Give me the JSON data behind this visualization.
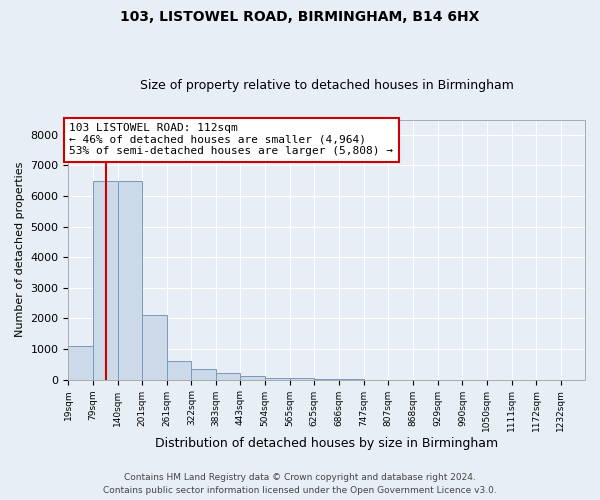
{
  "title1": "103, LISTOWEL ROAD, BIRMINGHAM, B14 6HX",
  "title2": "Size of property relative to detached houses in Birmingham",
  "xlabel": "Distribution of detached houses by size in Birmingham",
  "ylabel": "Number of detached properties",
  "bar_edges": [
    19,
    79,
    140,
    201,
    261,
    322,
    383,
    443,
    504,
    565,
    625,
    686,
    747,
    807,
    868,
    929,
    990,
    1050,
    1111,
    1172,
    1232
  ],
  "bar_heights": [
    1100,
    6500,
    6500,
    2100,
    600,
    350,
    200,
    120,
    60,
    40,
    20,
    5,
    3,
    2,
    1,
    1,
    0,
    0,
    0,
    0
  ],
  "bar_color": "#ccd9e8",
  "bar_edge_color": "#7799bb",
  "property_size": 112,
  "annotation_text": "103 LISTOWEL ROAD: 112sqm\n← 46% of detached houses are smaller (4,964)\n53% of semi-detached houses are larger (5,808) →",
  "annotation_box_color": "#ffffff",
  "annotation_box_edge": "#cc0000",
  "vline_color": "#cc0000",
  "ylim": [
    0,
    8500
  ],
  "yticks": [
    0,
    1000,
    2000,
    3000,
    4000,
    5000,
    6000,
    7000,
    8000
  ],
  "footer1": "Contains HM Land Registry data © Crown copyright and database right 2024.",
  "footer2": "Contains public sector information licensed under the Open Government Licence v3.0.",
  "bg_color": "#e8eef5",
  "grid_color": "#ffffff"
}
